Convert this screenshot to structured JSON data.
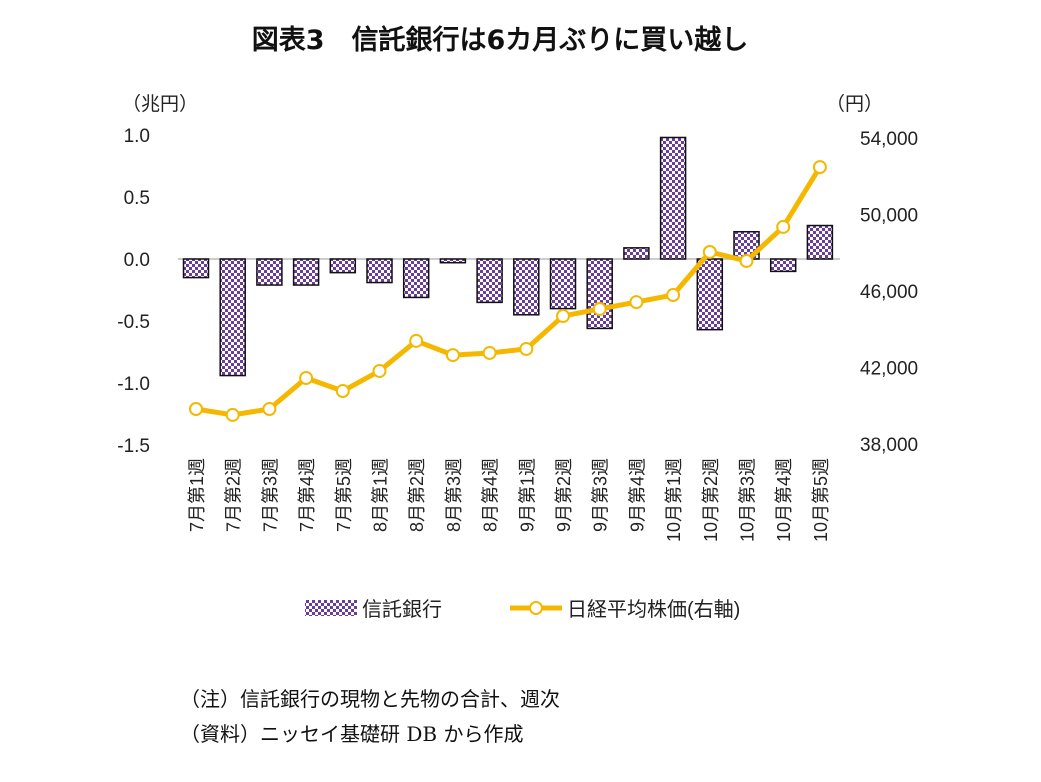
{
  "chart_data": {
    "type": "bar+line",
    "title": "図表3　信託銀行は6カ月ぶりに買い越し",
    "left_unit": "（兆円）",
    "right_unit": "（円）",
    "left_ylim": [
      -1.5,
      1.0
    ],
    "left_ticks": [
      "1.0",
      "0.5",
      "0.0",
      "-0.5",
      "-1.0",
      "-1.5"
    ],
    "right_ylim": [
      38000,
      54000
    ],
    "right_ticks": [
      "54,000",
      "50,000",
      "46,000",
      "42,000",
      "38,000"
    ],
    "categories": [
      "7月第1週",
      "7月第2週",
      "7月第3週",
      "7月第4週",
      "7月第5週",
      "8月第1週",
      "8月第2週",
      "8月第3週",
      "8月第4週",
      "9月第1週",
      "9月第2週",
      "9月第3週",
      "9月第4週",
      "10月第1週",
      "10月第2週",
      "10月第3週",
      "10月第4週",
      "10月第5週"
    ],
    "series": [
      {
        "name": "信託銀行",
        "type": "bar",
        "axis": "left",
        "color": "#6a3d9a",
        "values": [
          -0.15,
          -0.94,
          -0.21,
          -0.21,
          -0.11,
          -0.19,
          -0.31,
          -0.03,
          -0.35,
          -0.45,
          -0.4,
          -0.56,
          0.09,
          0.98,
          -0.57,
          0.22,
          -0.1,
          0.27
        ]
      },
      {
        "name": "日経平均株価(右軸)",
        "type": "line",
        "axis": "right",
        "color": "#f5b800",
        "values": [
          39830,
          39520,
          39830,
          41450,
          40770,
          41820,
          43390,
          42650,
          42760,
          42970,
          44690,
          45060,
          45420,
          45790,
          48040,
          47570,
          49350,
          52480
        ]
      }
    ],
    "grid": false,
    "legend": "bottom"
  },
  "notes": [
    "（注）信託銀行の現物と先物の合計、週次",
    "（資料）ニッセイ基礎研 DB から作成"
  ]
}
